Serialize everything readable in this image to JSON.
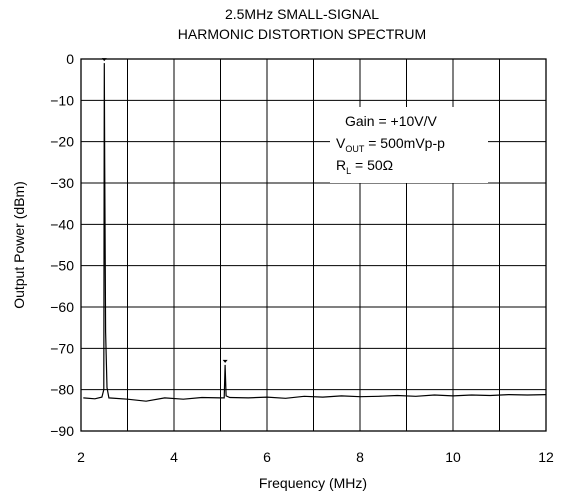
{
  "chart_data": {
    "type": "line",
    "title_lines": [
      "2.5MHz SMALL-SIGNAL",
      "HARMONIC DISTORTION SPECTRUM"
    ],
    "xlabel": "Frequency (MHz)",
    "ylabel": "Output Power (dBm)",
    "xlim": [
      2,
      12
    ],
    "ylim": [
      -90,
      0
    ],
    "x_ticks": [
      2,
      4,
      6,
      8,
      10,
      12
    ],
    "y_ticks": [
      0,
      -10,
      -20,
      -30,
      -40,
      -50,
      -60,
      -70,
      -80,
      -90
    ],
    "x_tick_labels": [
      "2",
      "4",
      "6",
      "8",
      "10",
      "12"
    ],
    "y_tick_labels": [
      "0",
      "−10",
      "−20",
      "−30",
      "−40",
      "−50",
      "−60",
      "−70",
      "−80",
      "−90"
    ],
    "grid": true,
    "annotation": {
      "gain": "Gain = +10V/V",
      "vout_prefix": "V",
      "vout_sub": "OUT",
      "vout_suffix": " = 500mVp-p",
      "rl_prefix": "R",
      "rl_sub": "L",
      "rl_suffix": " = 50Ω"
    },
    "noise_floor_dbm": -82,
    "series": [
      {
        "points": [
          [
            2.05,
            -82.0
          ],
          [
            2.3,
            -82.2
          ],
          [
            2.45,
            -81.8
          ],
          [
            2.49,
            -80.0
          ],
          [
            2.5,
            -1.0
          ],
          [
            2.51,
            -25.0
          ],
          [
            2.53,
            -66.0
          ],
          [
            2.56,
            -79.5
          ],
          [
            2.6,
            -82.0
          ],
          [
            3.0,
            -82.3
          ],
          [
            3.4,
            -82.8
          ],
          [
            3.8,
            -82.0
          ],
          [
            4.2,
            -82.3
          ],
          [
            4.6,
            -81.9
          ],
          [
            5.0,
            -82.0
          ],
          [
            5.08,
            -82.0
          ],
          [
            5.1,
            -74.0
          ],
          [
            5.12,
            -81.5
          ],
          [
            5.2,
            -81.9
          ],
          [
            5.6,
            -82.0
          ],
          [
            6.0,
            -81.8
          ],
          [
            6.4,
            -82.1
          ],
          [
            6.8,
            -81.6
          ],
          [
            7.2,
            -81.8
          ],
          [
            7.6,
            -81.5
          ],
          [
            8.0,
            -81.7
          ],
          [
            8.4,
            -81.6
          ],
          [
            8.8,
            -81.4
          ],
          [
            9.2,
            -81.6
          ],
          [
            9.6,
            -81.3
          ],
          [
            10.0,
            -81.5
          ],
          [
            10.4,
            -81.3
          ],
          [
            10.8,
            -81.4
          ],
          [
            11.2,
            -81.2
          ],
          [
            11.6,
            -81.3
          ],
          [
            12.0,
            -81.2
          ]
        ]
      }
    ],
    "markers": [
      {
        "x": 2.5,
        "y": -1.0
      },
      {
        "x": 5.1,
        "y": -74.0
      }
    ]
  }
}
